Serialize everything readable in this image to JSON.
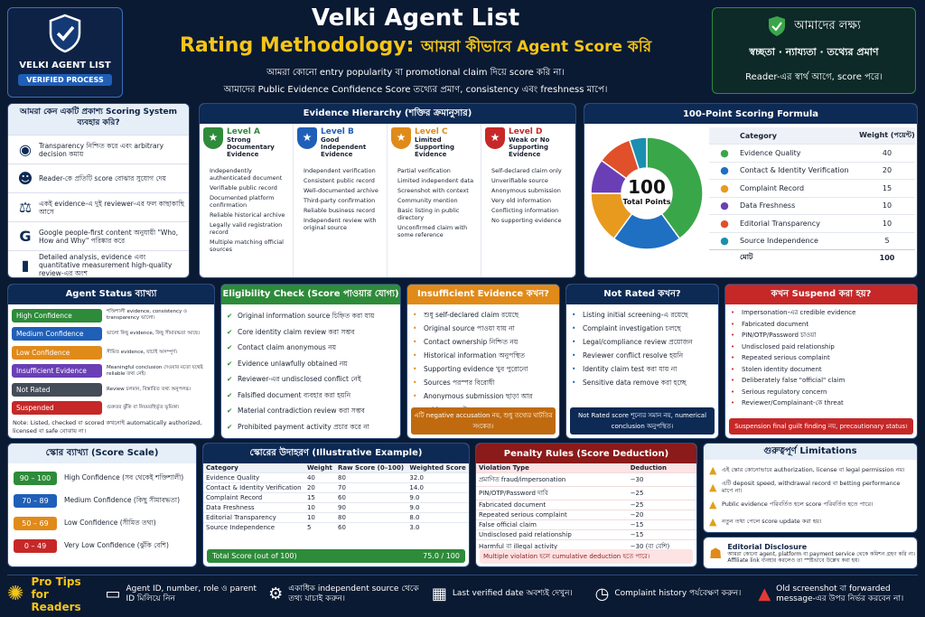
{
  "brand": {
    "title": "VELKI AGENT LIST",
    "badge": "VERIFIED PROCESS"
  },
  "header": {
    "title": "Velki Agent List",
    "subtitle_en": "Rating Methodology:",
    "subtitle_bn": "আমরা কীভাবে Agent Score করি",
    "line1": "আমরা কোনো entry popularity বা promotional claim দিয়ে score করি না।",
    "line2": "আমাদের Public Evidence Confidence Score তথ্যের প্রমাণ, consistency এবং freshness মাপে।"
  },
  "goal": {
    "title": "আমাদের লক্ষ্য",
    "values": "স্বচ্ছতা · ন্যায্যতা · তথ্যের প্রমাণ",
    "note": "Reader-এর স্বার্থ আগে, score পরে।"
  },
  "why": {
    "title": "আমরা কেন একটি প্রকাশ্য Scoring System ব্যবহার করি?",
    "items": [
      {
        "icon": "eye-icon",
        "g": "◉",
        "text": "Transparency নিশ্চিত করে এবং arbitrary decision কমায়"
      },
      {
        "icon": "users-icon",
        "g": "☻",
        "text": "Reader-কে প্রতিটি score বোঝার সুযোগ দেয়"
      },
      {
        "icon": "scale-icon",
        "g": "⚖",
        "text": "একই evidence-এ দুই reviewer-এর ফল কাছাকাছি আসে"
      },
      {
        "icon": "google-icon",
        "g": "G",
        "text": "Google people-first content অনুযায়ী \"Who, How and Why\" পরিষ্কার করে"
      },
      {
        "icon": "bars-icon",
        "g": "▮",
        "text": "Detailed analysis, evidence এবং quantitative measurement high-quality review-এর অংশ"
      }
    ]
  },
  "hierarchy": {
    "title": "Evidence Hierarchy (শক্তির ক্রমানুসার)",
    "levels": [
      {
        "name": "Level A",
        "desc": "Strong Documentary Evidence",
        "color": "#2e8b3a",
        "items": [
          "Independently authenticated document",
          "Verifiable public record",
          "Documented platform confirmation",
          "Reliable historical archive",
          "Legally valid registration record",
          "Multiple matching official sources"
        ]
      },
      {
        "name": "Level B",
        "desc": "Good Independent Evidence",
        "color": "#1f5fb8",
        "items": [
          "Independent verification",
          "Consistent public record",
          "Well-documented archive",
          "Third-party confirmation",
          "Reliable business record",
          "Independent review with original source"
        ]
      },
      {
        "name": "Level C",
        "desc": "Limited Supporting Evidence",
        "color": "#e08a1a",
        "items": [
          "Partial verification",
          "Limited independent data",
          "Screenshot with context",
          "Community mention",
          "Basic listing in public directory",
          "Unconfirmed claim with some reference"
        ]
      },
      {
        "name": "Level D",
        "desc": "Weak or No Supporting Evidence",
        "color": "#c62828",
        "items": [
          "Self-declared claim only",
          "Unverifiable source",
          "Anonymous submission",
          "Very old information",
          "Conflicting information",
          "No supporting evidence"
        ]
      }
    ]
  },
  "scoring": {
    "title": "100-Point Scoring Formula",
    "center_big": "100",
    "center_small": "Total Points",
    "head_cat": "Category",
    "head_w": "Weight (পয়েন্ট)",
    "rows": [
      {
        "name": "Evidence Quality",
        "w": "40",
        "v": 40,
        "color": "#3aa64a"
      },
      {
        "name": "Contact & Identity Verification",
        "w": "20",
        "v": 20,
        "color": "#1f6fc2"
      },
      {
        "name": "Complaint Record",
        "w": "15",
        "v": 15,
        "color": "#e89a1e"
      },
      {
        "name": "Data Freshness",
        "w": "10",
        "v": 10,
        "color": "#6a3fb5"
      },
      {
        "name": "Editorial Transparency",
        "w": "10",
        "v": 10,
        "color": "#e0502a"
      },
      {
        "name": "Source Independence",
        "w": "5",
        "v": 5,
        "color": "#1b8fb0"
      }
    ],
    "total_label": "মোট",
    "total": "100"
  },
  "status": {
    "title": "Agent Status ব্যাখ্যা",
    "rows": [
      {
        "name": "High Confidence",
        "color": "#2e8b3a",
        "desc": "শক্তিশালী evidence, consistency ও transparency ভালো।"
      },
      {
        "name": "Medium Confidence",
        "color": "#1f5fb8",
        "desc": "ভালো কিছু evidence, কিছু সীমাবদ্ধতা আছে।"
      },
      {
        "name": "Low Confidence",
        "color": "#e08a1a",
        "desc": "সীমিত evidence, যাচাই অসম্পূর্ণ।"
      },
      {
        "name": "Insufficient Evidence",
        "color": "#6a3fb5",
        "desc": "Meaningful conclusion দেওয়ার মতো যথেষ্ট reliable তথ্য নেই।"
      },
      {
        "name": "Not Rated",
        "color": "#444c58",
        "desc": "Review চলমান, বিস্তারিত তথ্য অনুপলব্ধ।"
      },
      {
        "name": "Suspended",
        "color": "#c62828",
        "desc": "গুরুতর ঝুঁকি বা নিয়মবহির্ভূত ভূমিকা।"
      }
    ],
    "note": "Note: Listed, checked বা scored কখনোই automatically authorized, licensed বা safe বোঝায় না।"
  },
  "eligibility": {
    "title": "Eligibility Check (Score পাওয়ার যোগ্য)",
    "items": [
      "Original information source চিহ্নিত করা যায়",
      "Core identity claim review করা সম্ভব",
      "Contact claim anonymous নয়",
      "Evidence unlawfully obtained নয়",
      "Reviewer-এর undisclosed conflict নেই",
      "Falsified document ব্যবহার করা হয়নি",
      "Material contradiction review করা সম্ভব",
      "Prohibited payment activity প্রচার করে না"
    ]
  },
  "insufficient": {
    "title": "Insufficient Evidence কখন?",
    "items": [
      "শুধু self-declared claim রয়েছে",
      "Original source পাওয়া যায় না",
      "Contact ownership নিশ্চিত নয়",
      "Historical information অনুপস্থিত",
      "Supporting evidence খুব পুরোনো",
      "Sources পরস্পর বিরোধী",
      "Anonymous submission ছাড়া আর evidence নেই"
    ],
    "note": "এটি negative accusation নয়, শুধু তথ্যের ঘাটতির সংকেত।"
  },
  "notrated": {
    "title": "Not Rated কখন?",
    "items": [
      "Listing initial screening-এ রয়েছে",
      "Complaint investigation চলছে",
      "Legal/compliance review প্রয়োজন",
      "Reviewer conflict resolve হয়নি",
      "Identity claim test করা যায় না",
      "Sensitive data remove করা হচ্ছে"
    ],
    "note": "Not Rated score শূন্যের সমান নয়, numerical conclusion অনুপস্থিত।"
  },
  "suspend": {
    "title": "কখন Suspend করা হয়?",
    "items": [
      "Impersonation-এর credible evidence",
      "Fabricated document",
      "PIN/OTP/Password চাওয়া",
      "Undisclosed paid relationship",
      "Repeated serious complaint",
      "Stolen identity document",
      "Deliberately false \"official\" claim",
      "Serious regulatory concern",
      "Reviewer/Complainant-কে threat"
    ],
    "note": "Suspension final guilt finding নয়, precautionary status।"
  },
  "scale": {
    "title": "স্কোর ব্যাখ্যা (Score Scale)",
    "rows": [
      {
        "range": "90 – 100",
        "label": "High Confidence (সব থেকেই শক্তিশালী)",
        "color": "#2e8b3a"
      },
      {
        "range": "70 – 89",
        "label": "Medium Confidence (কিছু সীমাবদ্ধতা)",
        "color": "#1f5fb8"
      },
      {
        "range": "50 – 69",
        "label": "Low Confidence (সীমিত তথ্য)",
        "color": "#e08a1a"
      },
      {
        "range": "0 – 49",
        "label": "Very Low Confidence (ঝুঁকি বেশি)",
        "color": "#c62828"
      }
    ]
  },
  "example": {
    "title": "স্কোরের উদাহরণ (Illustrative Example)",
    "headers": [
      "Category",
      "Weight",
      "Raw Score (0–100)",
      "Weighted Score"
    ],
    "rows": [
      [
        "Evidence Quality",
        "40",
        "80",
        "32.0"
      ],
      [
        "Contact & Identity Verification",
        "20",
        "70",
        "14.0"
      ],
      [
        "Complaint Record",
        "15",
        "60",
        "9.0"
      ],
      [
        "Data Freshness",
        "10",
        "90",
        "9.0"
      ],
      [
        "Editorial Transparency",
        "10",
        "80",
        "8.0"
      ],
      [
        "Source Independence",
        "5",
        "60",
        "3.0"
      ]
    ],
    "total_label": "Total Score (out of 100)",
    "total": "75.0 / 100"
  },
  "penalty": {
    "title": "Penalty Rules (Score Deduction)",
    "headers": [
      "Violation Type",
      "Deduction"
    ],
    "rows": [
      [
        "প্রমাণিত fraud/impersonation",
        "−30"
      ],
      [
        "PIN/OTP/Password দাবি",
        "−25"
      ],
      [
        "Fabricated document",
        "−25"
      ],
      [
        "Repeated serious complaint",
        "−20"
      ],
      [
        "False official claim",
        "−15"
      ],
      [
        "Undisclosed paid relationship",
        "−15"
      ],
      [
        "Harmful বা illegal activity",
        "−30 (বা বেশি)"
      ]
    ],
    "note": "Multiple violation হলে cumulative deduction হতে পারে।"
  },
  "limits": {
    "title": "গুরুত্বপূর্ণ Limitations",
    "items": [
      "এই স্কোর কোনোভাবে authorization, license বা legal permission নয়।",
      "এটি deposit speed, withdrawal record বা betting performance মাপে না।",
      "Public evidence পরিবর্তিত হলে score পরিবর্তিত হতে পারে।",
      "নতুন তথ্য পেলে score update করা হয়।"
    ]
  },
  "disclosure": {
    "title": "Editorial Disclosure",
    "text": "আমরা কোনো agent, platform বা payment service থেকে কমিশন গ্রহণ করি না। Affiliate link ব্যবহার করলেও তা স্পষ্টভাবে উল্লেখ করা হয়।"
  },
  "tips": {
    "label": "Pro Tips for Readers",
    "items": [
      {
        "icon": "id-card-icon",
        "g": "▭",
        "text": "Agent ID, number, role ও parent ID মিলিয়ে নিন"
      },
      {
        "icon": "gear-search-icon",
        "g": "⚙",
        "text": "একাধিক independent source থেকে তথ্য যাচাই করুন।"
      },
      {
        "icon": "calendar-icon",
        "g": "▦",
        "text": "Last verified date অবশ্যই দেখুন।"
      },
      {
        "icon": "clock-icon",
        "g": "◷",
        "text": "Complaint history পর্যবেক্ষণ করুন।"
      },
      {
        "icon": "warning-icon",
        "g": "▲",
        "text": "Old screenshot বা forwarded message-এর উপর নির্ভর করবেন না।"
      }
    ]
  }
}
